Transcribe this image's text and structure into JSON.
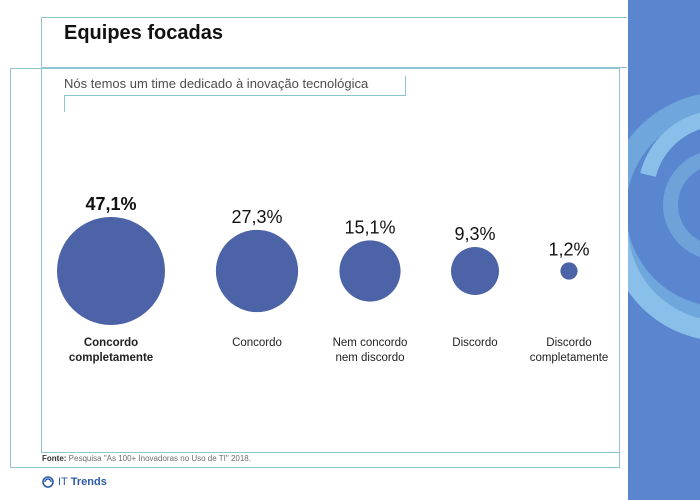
{
  "header": {
    "title": "Equipes focadas"
  },
  "chart_data": {
    "type": "bubble",
    "title": "Equipes focadas",
    "subtitle": "Nós temos um time dedicado à inovação tecnológica",
    "categories": [
      "Concordo completamente",
      "Concordo",
      "Nem concordo nem discordo",
      "Discordo",
      "Discordo completamente"
    ],
    "values": [
      47.1,
      27.3,
      15.1,
      9.3,
      1.2
    ],
    "value_labels": [
      "47,1%",
      "27,3%",
      "15,1%",
      "9,3%",
      "1,2%"
    ],
    "category_lines": [
      [
        "Concordo",
        "completamente"
      ],
      [
        "Concordo"
      ],
      [
        "Nem concordo",
        "nem discordo"
      ],
      [
        "Discordo"
      ],
      [
        "Discordo",
        "completamente"
      ]
    ],
    "highlight_index": 0,
    "bubble_color": "#4d63a8"
  },
  "footer": {
    "source_label": "Fonte:",
    "source_text": " Pesquisa \"As 100+ Inovadoras no Uso de TI\" 2018.",
    "brand_it": "IT",
    "brand_trends": "Trends",
    "brand_color": "#2b5aa8"
  },
  "sidebar": {
    "color": "#5a86cf",
    "accent": "#7fb3e3"
  }
}
